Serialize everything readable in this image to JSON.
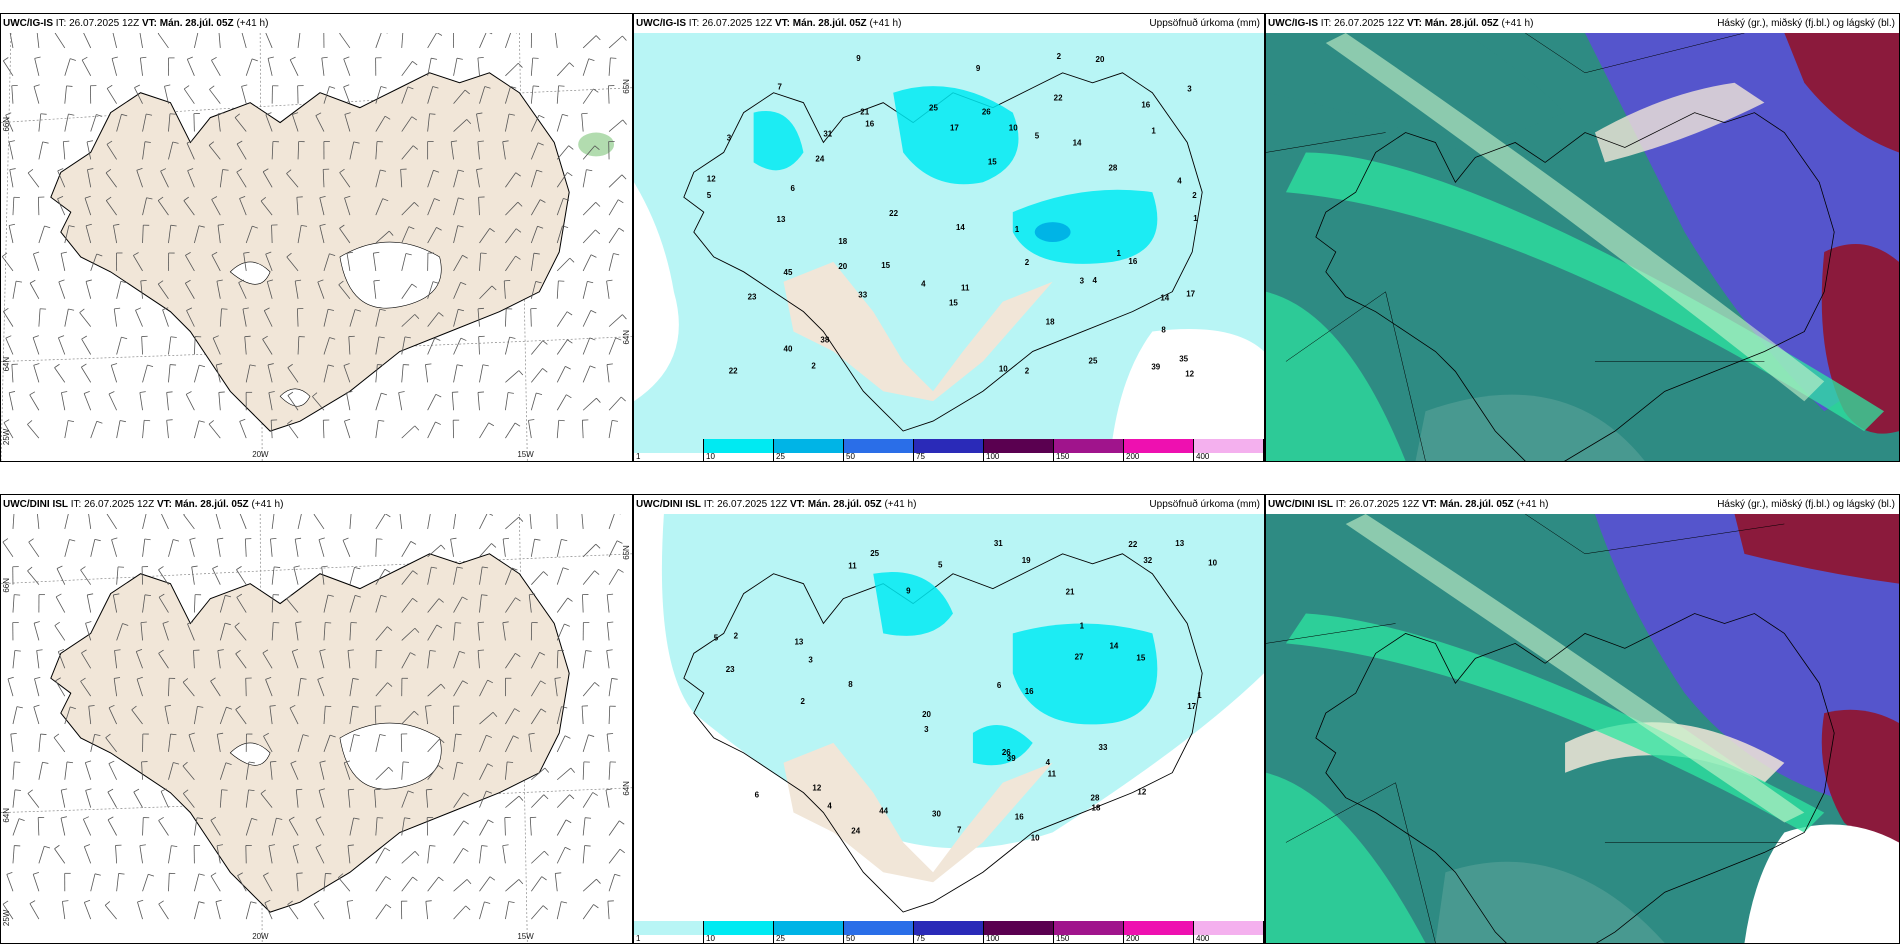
{
  "panels": [
    {
      "model": "UWC/IG-IS",
      "it": "IT: 26.07.2025 12Z",
      "vt_label": "VT:",
      "vt": "Mán. 28.júl. 05Z",
      "lead": "(+41 h)",
      "title_right": ""
    },
    {
      "model": "UWC/IG-IS",
      "it": "IT: 26.07.2025 12Z",
      "vt_label": "VT:",
      "vt": "Mán. 28.júl. 05Z",
      "lead": "(+41 h)",
      "title_right": "Uppsöfnuð úrkoma (mm)"
    },
    {
      "model": "UWC/IG-IS",
      "it": "IT: 26.07.2025 12Z",
      "vt_label": "VT:",
      "vt": "Mán. 28.júl. 05Z",
      "lead": "(+41 h)",
      "title_right": "Háský (gr.), miðský (fj.bl.) og lágský (bl.)"
    },
    {
      "model": "UWC/DINI ISL",
      "it": "IT: 26.07.2025 12Z",
      "vt_label": "VT:",
      "vt": "Mán. 28.júl. 05Z",
      "lead": "(+41 h)",
      "title_right": ""
    },
    {
      "model": "UWC/DINI ISL",
      "it": "IT: 26.07.2025 12Z",
      "vt_label": "VT:",
      "vt": "Mán. 28.júl. 05Z",
      "lead": "(+41 h)",
      "title_right": "Uppsöfnuð úrkoma (mm)"
    },
    {
      "model": "UWC/DINI ISL",
      "it": "IT: 26.07.2025 12Z",
      "vt_label": "VT:",
      "vt": "Mán. 28.júl. 05Z",
      "lead": "(+41 h)",
      "title_right": "Háský (gr.), miðský (fj.bl.) og lágský (bl.)"
    }
  ],
  "colorbar": {
    "labels": [
      "1",
      "10",
      "25",
      "50",
      "75",
      "100",
      "150",
      "200",
      "400"
    ],
    "colors": [
      "#b8f5f5",
      "#00eaf2",
      "#00b4e6",
      "#2a6ee8",
      "#2a2ab8",
      "#5a0050",
      "#a0148c",
      "#ee10b0",
      "#f4b0ee"
    ]
  },
  "grid_labels": {
    "lat_66": "66N",
    "lat_64": "64N",
    "lon_25": "25W",
    "lon_20": "20W",
    "lon_15": "15W",
    "lat_65_right": "65N",
    "lat_64_right": "64N"
  },
  "precip_numbers_top": [
    "16",
    "4",
    "5",
    "2",
    "22",
    "17",
    "15",
    "2",
    "14",
    "16",
    "24",
    "16",
    "28",
    "33",
    "23",
    "14",
    "18",
    "12",
    "9",
    "25",
    "35",
    "26",
    "40",
    "45",
    "15",
    "20",
    "22",
    "18",
    "10",
    "3",
    "2",
    "12",
    "13",
    "9",
    "6",
    "5",
    "1",
    "2",
    "1",
    "1",
    "2",
    "3",
    "4",
    "11",
    "8",
    "7",
    "10",
    "14",
    "21",
    "38",
    "39",
    "31",
    "25",
    "22",
    "20",
    "15",
    "17",
    "3",
    "4",
    "1"
  ],
  "precip_numbers_bottom": [
    "10",
    "11",
    "12",
    "13",
    "14",
    "16",
    "17",
    "8",
    "3",
    "4",
    "6",
    "5",
    "20",
    "26",
    "27",
    "22",
    "23",
    "32",
    "33",
    "15",
    "28",
    "39",
    "24",
    "18",
    "16",
    "1",
    "2",
    "3",
    "7",
    "9",
    "11",
    "13",
    "21",
    "44",
    "25",
    "30",
    "31",
    "2",
    "1",
    "4",
    "5",
    "6",
    "10",
    "12",
    "19"
  ],
  "colors": {
    "land": "#f1e6d8",
    "cloud_high": "#2e8b83",
    "cloud_mid": "#5555cc",
    "cloud_low": "#8b1a3c",
    "cloud_bright": "#2ee6a0",
    "precip_light": "#b8f5f5",
    "precip_mid": "#00eaf2"
  }
}
